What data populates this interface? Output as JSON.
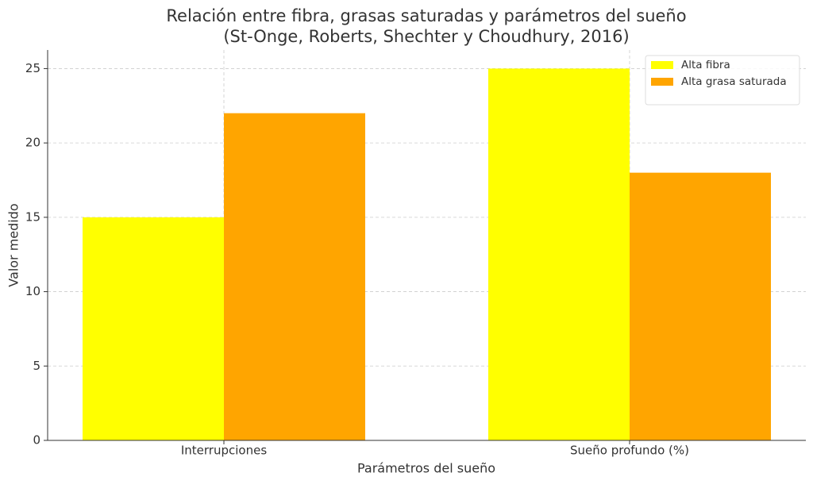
{
  "chart_data": {
    "type": "bar",
    "title": "Relación entre fibra, grasas saturadas y parámetros del sueño",
    "subtitle": "(St-Onge, Roberts, Shechter y Choudhury, 2016)",
    "x_label": "Parámetros del sueño",
    "y_label": "Valor medido",
    "categories": [
      "Interrupciones",
      "Sueño profundo (%)"
    ],
    "series": [
      {
        "name": "Alta fibra",
        "color": "#ffff00",
        "values": [
          15,
          25
        ]
      },
      {
        "name": "Alta grasa saturada",
        "color": "#ffa500",
        "values": [
          22,
          18
        ]
      }
    ],
    "ylim": [
      0,
      26.25
    ],
    "yticks": [
      0,
      5,
      10,
      15,
      20,
      25
    ],
    "grid": true,
    "legend": "upper right"
  }
}
